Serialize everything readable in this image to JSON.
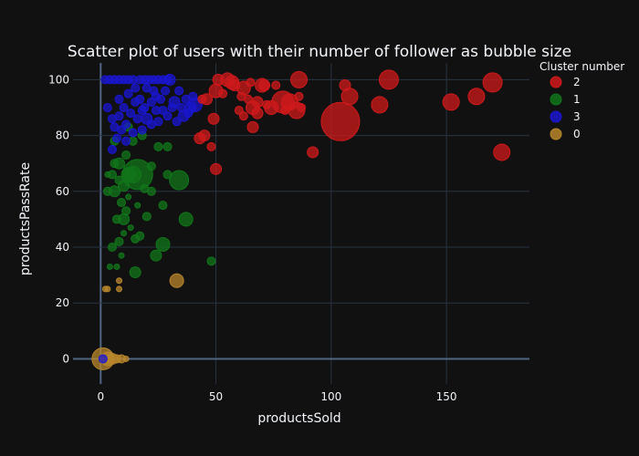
{
  "chart_data": {
    "type": "scatter",
    "title": "Scatter plot of users with their number of follower as bubble size",
    "xlabel": "productsSold",
    "ylabel": "productsPassRate",
    "xlim": [
      -12,
      186
    ],
    "ylim": [
      -9,
      106
    ],
    "xticks": [
      0,
      50,
      100,
      150
    ],
    "yticks": [
      0,
      20,
      40,
      60,
      80,
      100
    ],
    "grid": true,
    "background": "#111111",
    "grid_color": "#283442",
    "legend": {
      "title": "Cluster number",
      "placement": "top-right"
    },
    "series": [
      {
        "name": "2",
        "color": "#d0191b",
        "points": [
          [
            104,
            85,
            14
          ],
          [
            125,
            100,
            7
          ],
          [
            170,
            99,
            7
          ],
          [
            163,
            94,
            6
          ],
          [
            152,
            92,
            6
          ],
          [
            174,
            74,
            6
          ],
          [
            86,
            100,
            6
          ],
          [
            85,
            89,
            6
          ],
          [
            82,
            92,
            6
          ],
          [
            79,
            92,
            8
          ],
          [
            108,
            94,
            6
          ],
          [
            121,
            91,
            6
          ],
          [
            74,
            90,
            5
          ],
          [
            70,
            98,
            5
          ],
          [
            66,
            90,
            5
          ],
          [
            62,
            97,
            5
          ],
          [
            57,
            99,
            5
          ],
          [
            55,
            100,
            5
          ],
          [
            50,
            96,
            5
          ],
          [
            49,
            86,
            4
          ],
          [
            46,
            93,
            4
          ],
          [
            45,
            80,
            4
          ],
          [
            43,
            79,
            4
          ],
          [
            44,
            93,
            3
          ],
          [
            51,
            100,
            4
          ],
          [
            58,
            98,
            4
          ],
          [
            60,
            89,
            3
          ],
          [
            64,
            93,
            3
          ],
          [
            68,
            88,
            4
          ],
          [
            71,
            98,
            4
          ],
          [
            76,
            98,
            3
          ],
          [
            80,
            89,
            3
          ],
          [
            86,
            94,
            3
          ],
          [
            87,
            90,
            3
          ],
          [
            92,
            74,
            4
          ],
          [
            106,
            98,
            4
          ],
          [
            50,
            68,
            4
          ],
          [
            48,
            76,
            3
          ],
          [
            66,
            83,
            4
          ],
          [
            68,
            92,
            4
          ],
          [
            53,
            95,
            3
          ],
          [
            61,
            94,
            3
          ],
          [
            72,
            91,
            3
          ],
          [
            65,
            99,
            3
          ],
          [
            62,
            87,
            3
          ]
        ]
      },
      {
        "name": "1",
        "color": "#11761a",
        "points": [
          [
            16,
            66,
            11
          ],
          [
            34,
            64,
            7
          ],
          [
            37,
            50,
            5
          ],
          [
            27,
            41,
            5
          ],
          [
            24,
            37,
            4
          ],
          [
            15,
            31,
            4
          ],
          [
            48,
            35,
            3
          ],
          [
            14,
            66,
            6
          ],
          [
            12,
            66,
            5
          ],
          [
            6,
            60,
            4
          ],
          [
            10,
            62,
            4
          ],
          [
            8,
            70,
            4
          ],
          [
            5,
            66,
            3
          ],
          [
            3,
            60,
            3
          ],
          [
            11,
            73,
            3
          ],
          [
            14,
            78,
            3
          ],
          [
            12,
            83,
            3
          ],
          [
            6,
            78,
            3
          ],
          [
            9,
            56,
            3
          ],
          [
            10,
            50,
            4
          ],
          [
            7,
            50,
            3
          ],
          [
            11,
            53,
            3
          ],
          [
            15,
            43,
            3
          ],
          [
            17,
            44,
            3
          ],
          [
            5,
            40,
            3
          ],
          [
            8,
            42,
            3
          ],
          [
            4,
            33,
            2
          ],
          [
            7,
            33,
            2
          ],
          [
            27,
            55,
            3
          ],
          [
            29,
            66,
            3
          ],
          [
            29,
            76,
            3
          ],
          [
            19,
            61,
            3
          ],
          [
            22,
            69,
            3
          ],
          [
            25,
            76,
            3
          ],
          [
            18,
            80,
            3
          ],
          [
            16,
            55,
            2
          ],
          [
            13,
            47,
            2
          ],
          [
            9,
            37,
            2
          ],
          [
            22,
            60,
            3
          ],
          [
            20,
            51,
            3
          ],
          [
            8,
            64,
            3
          ],
          [
            6,
            70,
            3
          ],
          [
            12,
            58,
            2
          ],
          [
            3,
            66,
            2
          ],
          [
            10,
            45,
            2
          ]
        ]
      },
      {
        "name": "3",
        "color": "#1a16d0",
        "points": [
          [
            41,
            91,
            5
          ],
          [
            39,
            90,
            4
          ],
          [
            36,
            87,
            4
          ],
          [
            32,
            92,
            4
          ],
          [
            30,
            100,
            4
          ],
          [
            27,
            89,
            3
          ],
          [
            24,
            94,
            3
          ],
          [
            22,
            92,
            3
          ],
          [
            20,
            86,
            4
          ],
          [
            18,
            89,
            3
          ],
          [
            15,
            92,
            3
          ],
          [
            13,
            88,
            3
          ],
          [
            11,
            84,
            3
          ],
          [
            9,
            82,
            3
          ],
          [
            7,
            79,
            3
          ],
          [
            5,
            75,
            3
          ],
          [
            2,
            100,
            3
          ],
          [
            4,
            100,
            3
          ],
          [
            6,
            100,
            3
          ],
          [
            8,
            100,
            3
          ],
          [
            10,
            100,
            3
          ],
          [
            12,
            100,
            3
          ],
          [
            14,
            100,
            3
          ],
          [
            17,
            100,
            3
          ],
          [
            19,
            100,
            3
          ],
          [
            21,
            100,
            3
          ],
          [
            23,
            100,
            3
          ],
          [
            25,
            100,
            3
          ],
          [
            27,
            100,
            3
          ],
          [
            29,
            100,
            3
          ],
          [
            3,
            90,
            3
          ],
          [
            5,
            86,
            3
          ],
          [
            8,
            93,
            3
          ],
          [
            10,
            90,
            3
          ],
          [
            12,
            95,
            3
          ],
          [
            15,
            97,
            3
          ],
          [
            17,
            93,
            3
          ],
          [
            20,
            97,
            3
          ],
          [
            23,
            96,
            3
          ],
          [
            26,
            93,
            3
          ],
          [
            28,
            96,
            3
          ],
          [
            31,
            90,
            3
          ],
          [
            34,
            96,
            3
          ],
          [
            37,
            93,
            3
          ],
          [
            38,
            88,
            3
          ],
          [
            33,
            85,
            3
          ],
          [
            29,
            87,
            3
          ],
          [
            25,
            85,
            3
          ],
          [
            22,
            84,
            3
          ],
          [
            18,
            82,
            3
          ],
          [
            14,
            81,
            3
          ],
          [
            11,
            78,
            3
          ],
          [
            8,
            87,
            3
          ],
          [
            6,
            83,
            3
          ],
          [
            16,
            86,
            3
          ],
          [
            19,
            90,
            3
          ],
          [
            24,
            89,
            3
          ],
          [
            35,
            90,
            3
          ],
          [
            40,
            94,
            3
          ],
          [
            1,
            0,
            3
          ]
        ]
      },
      {
        "name": "0",
        "color": "#b8862b",
        "points": [
          [
            1,
            0,
            8
          ],
          [
            3,
            0,
            5
          ],
          [
            5,
            0,
            4
          ],
          [
            7,
            0,
            3
          ],
          [
            9,
            0,
            3
          ],
          [
            11,
            0,
            2
          ],
          [
            33,
            28,
            5
          ],
          [
            8,
            28,
            2
          ],
          [
            8,
            25,
            2
          ],
          [
            3,
            25,
            2
          ],
          [
            2,
            25,
            2
          ],
          [
            4,
            0,
            3
          ]
        ]
      }
    ]
  }
}
